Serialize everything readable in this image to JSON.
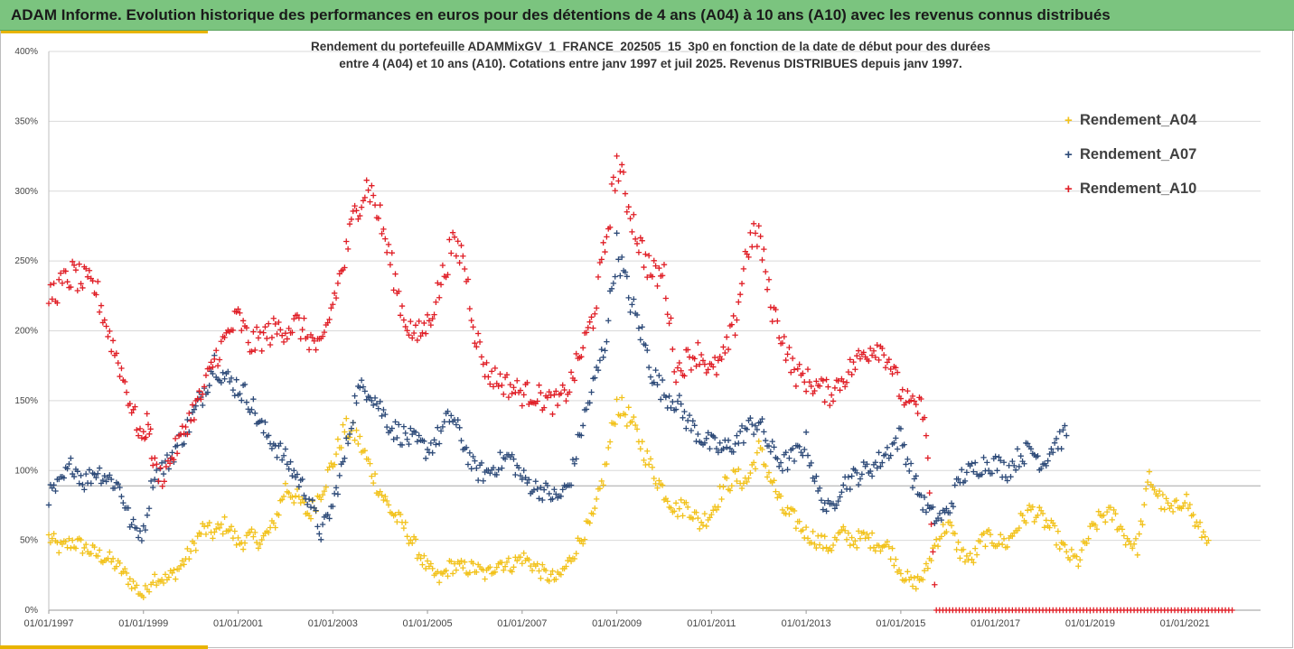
{
  "header": {
    "title": "ADAM Informe. Evolution historique des performances en euros pour des détentions de 4 ans (A04) à 10 ans (A10) avec les revenus connus distribués"
  },
  "chart_data": {
    "type": "scatter",
    "title_line1": "Rendement du portefeuille ADAMMixGV_1_FRANCE_202505_15_3p0 en fonction de la date de début pour des durées",
    "title_line2": "entre 4 (A04) et 10 ans (A10). Cotations entre janv 1997 et juil 2025. Revenus DISTRIBUES depuis janv 1997.",
    "marker": "+",
    "xlabel": "",
    "ylabel": "",
    "x_range": [
      "01/01/1997",
      "01/08/2022"
    ],
    "ylim": [
      0,
      4.0
    ],
    "y_ticks": [
      "0%",
      "50%",
      "100%",
      "150%",
      "200%",
      "250%",
      "300%",
      "350%",
      "400%"
    ],
    "x_ticks": [
      "01/01/1997",
      "01/01/1999",
      "01/01/2001",
      "01/01/2003",
      "01/01/2005",
      "01/01/2007",
      "01/01/2009",
      "01/01/2011",
      "01/01/2013",
      "01/01/2015",
      "01/01/2017",
      "01/01/2019",
      "01/01/2021"
    ],
    "grid": "horizontal",
    "legend_position": "right",
    "reference_line": 0.89,
    "series": [
      {
        "name": "Rendement_A04",
        "color": "#f2c21b",
        "points": [
          [
            "1997.00",
            0.52
          ],
          [
            "1997.25",
            0.44
          ],
          [
            "1997.50",
            0.49
          ],
          [
            "1997.75",
            0.45
          ],
          [
            "1998.00",
            0.4
          ],
          [
            "1998.25",
            0.37
          ],
          [
            "1998.50",
            0.3
          ],
          [
            "1998.75",
            0.2
          ],
          [
            "1999.00",
            0.1
          ],
          [
            "1999.20",
            0.24
          ],
          [
            "1999.50",
            0.22
          ],
          [
            "1999.75",
            0.3
          ],
          [
            "2000.00",
            0.42
          ],
          [
            "2000.25",
            0.58
          ],
          [
            "2000.50",
            0.55
          ],
          [
            "2000.75",
            0.62
          ],
          [
            "2001.00",
            0.48
          ],
          [
            "2001.25",
            0.52
          ],
          [
            "2001.50",
            0.5
          ],
          [
            "2001.75",
            0.6
          ],
          [
            "2002.00",
            0.88
          ],
          [
            "2002.25",
            0.8
          ],
          [
            "2002.50",
            0.68
          ],
          [
            "2002.75",
            0.85
          ],
          [
            "2003.00",
            1.05
          ],
          [
            "2003.25",
            1.3
          ],
          [
            "2003.50",
            1.25
          ],
          [
            "2003.75",
            1.05
          ],
          [
            "2004.00",
            0.85
          ],
          [
            "2004.25",
            0.7
          ],
          [
            "2004.50",
            0.6
          ],
          [
            "2004.75",
            0.45
          ],
          [
            "2005.00",
            0.3
          ],
          [
            "2005.25",
            0.22
          ],
          [
            "2005.50",
            0.32
          ],
          [
            "2005.75",
            0.3
          ],
          [
            "2006.00",
            0.3
          ],
          [
            "2006.25",
            0.25
          ],
          [
            "2006.50",
            0.35
          ],
          [
            "2006.75",
            0.32
          ],
          [
            "2007.00",
            0.38
          ],
          [
            "2007.25",
            0.32
          ],
          [
            "2007.50",
            0.25
          ],
          [
            "2007.75",
            0.22
          ],
          [
            "2008.00",
            0.35
          ],
          [
            "2008.25",
            0.52
          ],
          [
            "2008.50",
            0.65
          ],
          [
            "2008.75",
            1.0
          ],
          [
            "2009.00",
            1.48
          ],
          [
            "2009.25",
            1.38
          ],
          [
            "2009.50",
            1.2
          ],
          [
            "2009.75",
            1.0
          ],
          [
            "2010.00",
            0.85
          ],
          [
            "2010.25",
            0.72
          ],
          [
            "2010.50",
            0.75
          ],
          [
            "2010.75",
            0.62
          ],
          [
            "2011.00",
            0.7
          ],
          [
            "2011.25",
            0.88
          ],
          [
            "2011.50",
            0.95
          ],
          [
            "2011.75",
            0.92
          ],
          [
            "2012.00",
            1.15
          ],
          [
            "2012.25",
            0.95
          ],
          [
            "2012.50",
            0.72
          ],
          [
            "2012.75",
            0.65
          ],
          [
            "2013.00",
            0.55
          ],
          [
            "2013.25",
            0.5
          ],
          [
            "2013.50",
            0.45
          ],
          [
            "2013.75",
            0.55
          ],
          [
            "2014.00",
            0.5
          ],
          [
            "2014.25",
            0.52
          ],
          [
            "2014.50",
            0.48
          ],
          [
            "2014.75",
            0.45
          ],
          [
            "2015.00",
            0.28
          ],
          [
            "2015.25",
            0.18
          ],
          [
            "2015.50",
            0.25
          ],
          [
            "2015.75",
            0.5
          ],
          [
            "2016.00",
            0.62
          ],
          [
            "2016.25",
            0.42
          ],
          [
            "2016.50",
            0.35
          ],
          [
            "2016.75",
            0.52
          ],
          [
            "2017.00",
            0.5
          ],
          [
            "2017.25",
            0.48
          ],
          [
            "2017.50",
            0.62
          ],
          [
            "2017.75",
            0.72
          ],
          [
            "2018.00",
            0.65
          ],
          [
            "2018.25",
            0.55
          ],
          [
            "2018.50",
            0.4
          ],
          [
            "2018.75",
            0.35
          ],
          [
            "2019.00",
            0.55
          ],
          [
            "2019.25",
            0.68
          ],
          [
            "2019.50",
            0.68
          ],
          [
            "2019.75",
            0.52
          ],
          [
            "2020.00",
            0.45
          ],
          [
            "2020.25",
            0.95
          ],
          [
            "2020.50",
            0.78
          ],
          [
            "2020.75",
            0.7
          ],
          [
            "2021.00",
            0.82
          ],
          [
            "2021.25",
            0.6
          ],
          [
            "2021.50",
            0.5
          ]
        ]
      },
      {
        "name": "Rendement_A07",
        "color": "#2d4a78",
        "points": [
          [
            "1997.00",
            0.82
          ],
          [
            "1997.25",
            0.9
          ],
          [
            "1997.50",
            1.05
          ],
          [
            "1997.75",
            0.92
          ],
          [
            "1998.00",
            1.0
          ],
          [
            "1998.25",
            0.95
          ],
          [
            "1998.50",
            0.88
          ],
          [
            "1998.75",
            0.6
          ],
          [
            "1999.00",
            0.55
          ],
          [
            "1999.20",
            0.95
          ],
          [
            "1999.50",
            1.05
          ],
          [
            "1999.75",
            1.2
          ],
          [
            "2000.00",
            1.35
          ],
          [
            "2000.25",
            1.55
          ],
          [
            "2000.50",
            1.78
          ],
          [
            "2000.75",
            1.65
          ],
          [
            "2001.00",
            1.6
          ],
          [
            "2001.25",
            1.5
          ],
          [
            "2001.50",
            1.3
          ],
          [
            "2001.75",
            1.2
          ],
          [
            "2002.00",
            1.08
          ],
          [
            "2002.25",
            0.95
          ],
          [
            "2002.50",
            0.8
          ],
          [
            "2002.75",
            0.55
          ],
          [
            "2003.00",
            0.75
          ],
          [
            "2003.25",
            1.1
          ],
          [
            "2003.50",
            1.55
          ],
          [
            "2003.75",
            1.6
          ],
          [
            "2004.00",
            1.45
          ],
          [
            "2004.25",
            1.3
          ],
          [
            "2004.50",
            1.25
          ],
          [
            "2004.75",
            1.2
          ],
          [
            "2005.00",
            1.15
          ],
          [
            "2005.25",
            1.25
          ],
          [
            "2005.50",
            1.4
          ],
          [
            "2005.75",
            1.2
          ],
          [
            "2006.00",
            1.0
          ],
          [
            "2006.25",
            0.98
          ],
          [
            "2006.50",
            1.05
          ],
          [
            "2006.75",
            1.1
          ],
          [
            "2007.00",
            0.95
          ],
          [
            "2007.25",
            0.88
          ],
          [
            "2007.50",
            0.85
          ],
          [
            "2007.75",
            0.8
          ],
          [
            "2008.00",
            0.9
          ],
          [
            "2008.25",
            1.3
          ],
          [
            "2008.50",
            1.6
          ],
          [
            "2008.75",
            1.9
          ],
          [
            "2009.00",
            2.6
          ],
          [
            "2009.25",
            2.25
          ],
          [
            "2009.50",
            2.0
          ],
          [
            "2009.75",
            1.7
          ],
          [
            "2010.00",
            1.55
          ],
          [
            "2010.25",
            1.5
          ],
          [
            "2010.50",
            1.35
          ],
          [
            "2010.75",
            1.25
          ],
          [
            "2011.00",
            1.18
          ],
          [
            "2011.25",
            1.15
          ],
          [
            "2011.50",
            1.2
          ],
          [
            "2011.75",
            1.3
          ],
          [
            "2012.00",
            1.35
          ],
          [
            "2012.25",
            1.15
          ],
          [
            "2012.50",
            1.05
          ],
          [
            "2012.75",
            1.1
          ],
          [
            "2013.00",
            1.2
          ],
          [
            "2013.25",
            0.85
          ],
          [
            "2013.50",
            0.7
          ],
          [
            "2013.75",
            0.9
          ],
          [
            "2014.00",
            0.95
          ],
          [
            "2014.25",
            1.0
          ],
          [
            "2014.50",
            1.05
          ],
          [
            "2014.75",
            1.15
          ],
          [
            "2015.00",
            1.25
          ],
          [
            "2015.25",
            0.95
          ],
          [
            "2015.50",
            0.75
          ],
          [
            "2015.75",
            0.65
          ],
          [
            "2016.00",
            0.7
          ],
          [
            "2016.25",
            0.95
          ],
          [
            "2016.50",
            1.0
          ],
          [
            "2016.75",
            1.05
          ],
          [
            "2017.00",
            1.05
          ],
          [
            "2017.25",
            1.0
          ],
          [
            "2017.50",
            1.1
          ],
          [
            "2017.75",
            1.15
          ],
          [
            "2018.00",
            1.05
          ],
          [
            "2018.25",
            1.2
          ],
          [
            "2018.50",
            1.25
          ]
        ]
      },
      {
        "name": "Rendement_A10",
        "color": "#e01e26",
        "points": [
          [
            "1997.00",
            2.25
          ],
          [
            "1997.25",
            2.32
          ],
          [
            "1997.50",
            2.4
          ],
          [
            "1997.75",
            2.35
          ],
          [
            "1998.00",
            2.3
          ],
          [
            "1998.25",
            2.0
          ],
          [
            "1998.50",
            1.75
          ],
          [
            "1998.75",
            1.45
          ],
          [
            "1999.00",
            1.2
          ],
          [
            "1999.10",
            1.4
          ],
          [
            "1999.20",
            1.05
          ],
          [
            "1999.40",
            0.95
          ],
          [
            "1999.60",
            1.1
          ],
          [
            "1999.75",
            1.2
          ],
          [
            "2000.00",
            1.4
          ],
          [
            "2000.25",
            1.55
          ],
          [
            "2000.50",
            1.8
          ],
          [
            "2000.75",
            1.95
          ],
          [
            "2001.00",
            2.1
          ],
          [
            "2001.25",
            1.9
          ],
          [
            "2001.50",
            1.95
          ],
          [
            "2001.75",
            2.0
          ],
          [
            "2002.00",
            2.02
          ],
          [
            "2002.25",
            2.05
          ],
          [
            "2002.50",
            1.95
          ],
          [
            "2002.75",
            1.85
          ],
          [
            "2003.00",
            2.2
          ],
          [
            "2003.25",
            2.5
          ],
          [
            "2003.50",
            2.9
          ],
          [
            "2003.75",
            3.05
          ],
          [
            "2004.00",
            2.8
          ],
          [
            "2004.25",
            2.45
          ],
          [
            "2004.50",
            2.1
          ],
          [
            "2004.75",
            1.95
          ],
          [
            "2005.00",
            2.05
          ],
          [
            "2005.25",
            2.3
          ],
          [
            "2005.50",
            2.6
          ],
          [
            "2005.75",
            2.55
          ],
          [
            "2006.00",
            2.0
          ],
          [
            "2006.25",
            1.7
          ],
          [
            "2006.50",
            1.65
          ],
          [
            "2006.75",
            1.6
          ],
          [
            "2007.00",
            1.55
          ],
          [
            "2007.25",
            1.55
          ],
          [
            "2007.50",
            1.5
          ],
          [
            "2007.75",
            1.48
          ],
          [
            "2008.00",
            1.6
          ],
          [
            "2008.25",
            1.85
          ],
          [
            "2008.50",
            2.1
          ],
          [
            "2008.75",
            2.6
          ],
          [
            "2009.00",
            3.2
          ],
          [
            "2009.25",
            2.9
          ],
          [
            "2009.50",
            2.6
          ],
          [
            "2009.75",
            2.4
          ],
          [
            "2010.00",
            2.4
          ],
          [
            "2010.25",
            1.7
          ],
          [
            "2010.50",
            1.8
          ],
          [
            "2010.75",
            1.85
          ],
          [
            "2011.00",
            1.7
          ],
          [
            "2011.25",
            1.8
          ],
          [
            "2011.50",
            2.05
          ],
          [
            "2011.75",
            2.6
          ],
          [
            "2012.00",
            2.7
          ],
          [
            "2012.25",
            2.2
          ],
          [
            "2012.50",
            1.95
          ],
          [
            "2012.75",
            1.7
          ],
          [
            "2013.00",
            1.65
          ],
          [
            "2013.25",
            1.6
          ],
          [
            "2013.50",
            1.55
          ],
          [
            "2013.75",
            1.65
          ],
          [
            "2014.00",
            1.75
          ],
          [
            "2014.25",
            1.85
          ],
          [
            "2014.50",
            1.9
          ],
          [
            "2014.75",
            1.8
          ],
          [
            "2015.00",
            1.55
          ],
          [
            "2015.25",
            1.45
          ],
          [
            "2015.50",
            1.45
          ],
          [
            "2015.75",
            0.0
          ],
          [
            "2017.00",
            0.0
          ],
          [
            "2018.50",
            0.0
          ],
          [
            "2020.00",
            0.0
          ],
          [
            "2022.00",
            0.0
          ]
        ]
      }
    ]
  }
}
